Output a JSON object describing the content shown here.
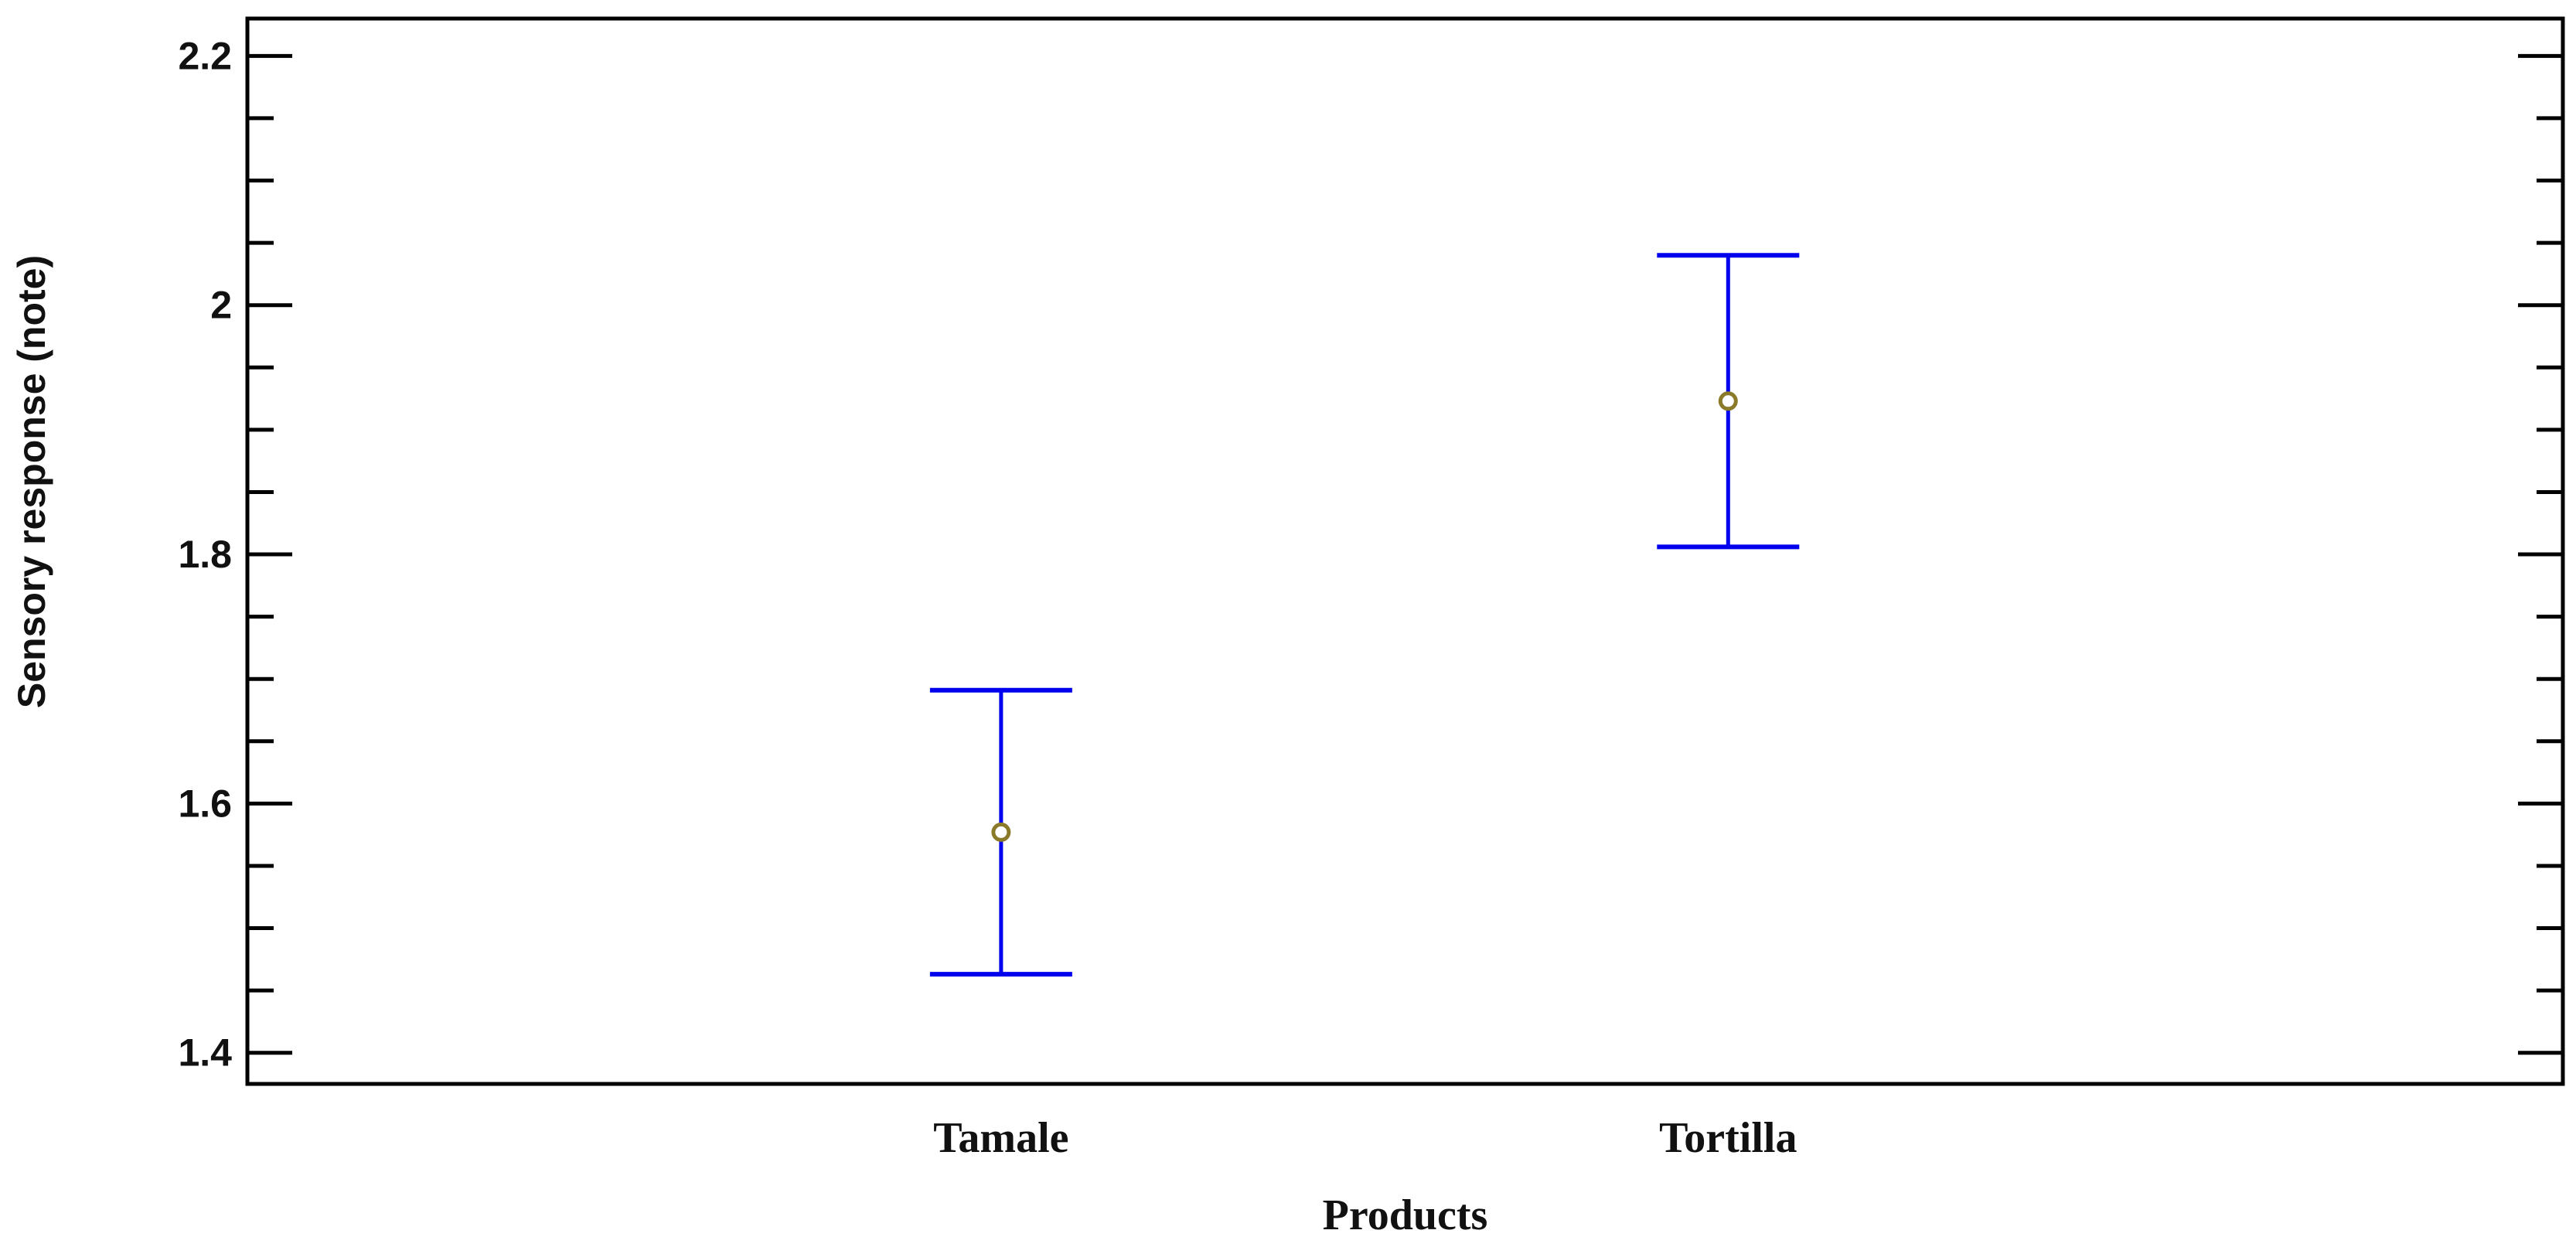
{
  "chart_data": {
    "type": "scatter",
    "title": "",
    "xlabel": "Products",
    "ylabel": "Sensory response (note)",
    "categories": [
      "Tamale",
      "Tortilla"
    ],
    "points": [
      {
        "category": "Tamale",
        "mean": 1.577,
        "lower": 1.463,
        "upper": 1.691
      },
      {
        "category": "Tortilla",
        "mean": 1.923,
        "lower": 1.806,
        "upper": 2.04
      }
    ],
    "ylim": [
      1.375,
      2.23
    ],
    "yticks": [
      1.4,
      1.6,
      1.8,
      2.0,
      2.2
    ],
    "ytick_labels": [
      "1.4",
      "1.6",
      "1.8",
      "2",
      "2.2"
    ],
    "minor_tick_step": 0.05,
    "grid": false,
    "colors": {
      "interval": "#0000ee",
      "mean_marker": "#8a7a2a",
      "axes": "#000000"
    }
  }
}
